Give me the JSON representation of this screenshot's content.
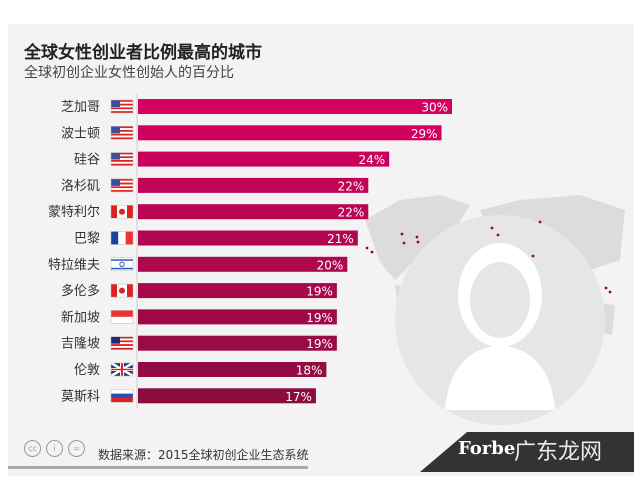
{
  "chart_data": {
    "type": "bar",
    "orientation": "horizontal",
    "title": "全球女性创业者比例最高的城市",
    "subtitle": "全球初创企业女性创始人的百分比",
    "categories": [
      "芝加哥",
      "波士顿",
      "硅谷",
      "洛杉矶",
      "蒙特利尔",
      "巴黎",
      "特拉维夫",
      "多伦多",
      "新加坡",
      "吉隆坡",
      "伦敦",
      "莫斯科"
    ],
    "flags": [
      "us",
      "us",
      "us",
      "us",
      "ca",
      "fr",
      "il",
      "ca",
      "sg",
      "my",
      "gb",
      "ru"
    ],
    "values": [
      30,
      29,
      24,
      22,
      22,
      21,
      20,
      19,
      19,
      19,
      18,
      17
    ],
    "labels": [
      "30%",
      "29%",
      "24%",
      "22%",
      "22%",
      "21%",
      "20%",
      "19%",
      "19%",
      "19%",
      "18%",
      "17%"
    ],
    "unit": "%",
    "xlim": [
      0,
      30
    ],
    "grid": false,
    "colors": {
      "top": "#d6005f",
      "bottom": "#8a0d3e",
      "label": "#ffffff"
    }
  },
  "footer": {
    "source": "数据来源：2015全球初创企业生态系统",
    "brand": "Forbe",
    "watermark": "广东龙网",
    "license_icons": [
      "cc",
      "by",
      "nd"
    ]
  }
}
